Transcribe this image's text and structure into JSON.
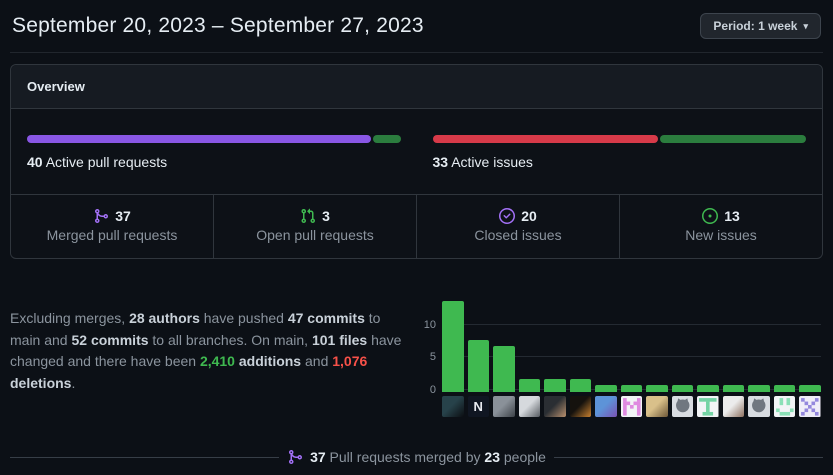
{
  "header": {
    "date_range": "September 20, 2023 – September 27, 2023",
    "period_label": "Period: 1 week",
    "caret": "▾"
  },
  "overview": {
    "title": "Overview",
    "pull_requests_meter": {
      "count": "40",
      "label": "Active pull requests",
      "segments": [
        {
          "name": "merged",
          "pct": 92.5,
          "color": "#8957e5"
        },
        {
          "name": "open",
          "pct": 7.5,
          "color": "#2b7d3e"
        }
      ]
    },
    "issues_meter": {
      "count": "33",
      "label": "Active issues",
      "segments": [
        {
          "name": "closed",
          "pct": 60.6,
          "color": "#d73a49"
        },
        {
          "name": "new",
          "pct": 39.4,
          "color": "#2b7d3e"
        }
      ]
    },
    "stats": [
      {
        "icon": "git-merge-icon",
        "value": "37",
        "label": "Merged pull requests",
        "icon_color": "#a371f7"
      },
      {
        "icon": "git-pull-request-icon",
        "value": "3",
        "label": "Open pull requests",
        "icon_color": "#3fb950"
      },
      {
        "icon": "issue-closed-icon",
        "value": "20",
        "label": "Closed issues",
        "icon_color": "#a371f7"
      },
      {
        "icon": "issue-opened-icon",
        "value": "13",
        "label": "New issues",
        "icon_color": "#3fb950"
      }
    ]
  },
  "summary": {
    "segments": [
      {
        "text": "Excluding merges, ",
        "style": "muted"
      },
      {
        "text": "28 authors",
        "style": "strong"
      },
      {
        "text": " have pushed ",
        "style": "muted"
      },
      {
        "text": "47 commits",
        "style": "strong"
      },
      {
        "text": " to main and ",
        "style": "muted"
      },
      {
        "text": "52 commits",
        "style": "strong"
      },
      {
        "text": " to all branches. On main, ",
        "style": "muted"
      },
      {
        "text": "101 files",
        "style": "strong"
      },
      {
        "text": " have changed and there have been ",
        "style": "muted"
      },
      {
        "text": "2,410",
        "style": "additions"
      },
      {
        "text": " ",
        "style": "muted"
      },
      {
        "text": "additions",
        "style": "strong"
      },
      {
        "text": " and ",
        "style": "muted"
      },
      {
        "text": "1,076",
        "style": "deletions"
      },
      {
        "text": " ",
        "style": "muted"
      },
      {
        "text": "deletions",
        "style": "strong"
      },
      {
        "text": ".",
        "style": "muted"
      }
    ]
  },
  "chart_data": {
    "type": "bar",
    "title": "",
    "xlabel": "",
    "ylabel": "",
    "categories": [
      "author-1",
      "author-2",
      "author-3",
      "author-4",
      "author-5",
      "author-6",
      "author-7",
      "author-8",
      "author-9",
      "author-10",
      "author-11",
      "author-12",
      "author-13",
      "author-14",
      "author-15"
    ],
    "values": [
      14,
      8,
      7,
      2,
      2,
      2,
      1,
      1,
      1,
      1,
      1,
      1,
      1,
      1,
      1
    ],
    "yticks": [
      0,
      5,
      10
    ],
    "ylim": [
      0,
      15
    ],
    "bar_color": "#3fb950",
    "grid": true,
    "legend": "none"
  },
  "avatars": [
    {
      "kind": "photo",
      "c1": "#27424a",
      "c2": "#0b0e12"
    },
    {
      "kind": "letter",
      "bg": "#101622",
      "fg": "#e8eaf0",
      "label": "N"
    },
    {
      "kind": "photo",
      "c1": "#8a9199",
      "c2": "#3c4147"
    },
    {
      "kind": "photo",
      "c1": "#d6d9dd",
      "c2": "#565b61"
    },
    {
      "kind": "photo",
      "c1": "#2a2e33",
      "c2": "#b9906e"
    },
    {
      "kind": "photo",
      "c1": "#15120e",
      "c2": "#c8802f"
    },
    {
      "kind": "photo",
      "c1": "#5d93d8",
      "c2": "#7a52b3"
    },
    {
      "kind": "identicon",
      "bg": "#f2f4f6",
      "fg": "#df8ae0",
      "grid": [
        "10001",
        "11011",
        "10101",
        "10001",
        "10001"
      ]
    },
    {
      "kind": "photo",
      "c1": "#d9c08a",
      "c2": "#6e5838"
    },
    {
      "kind": "octocat",
      "bg": "#d9dde2",
      "fg": "#707780"
    },
    {
      "kind": "identicon",
      "bg": "#f2f4f6",
      "fg": "#74d3a4",
      "grid": [
        "11111",
        "00100",
        "00100",
        "00100",
        "01110"
      ]
    },
    {
      "kind": "photo",
      "c1": "#ececec",
      "c2": "#8d7060"
    },
    {
      "kind": "octocat",
      "bg": "#d9dde2",
      "fg": "#707780"
    },
    {
      "kind": "identicon",
      "bg": "#f2f4f6",
      "fg": "#8ae0b6",
      "grid": [
        "01010",
        "01010",
        "00000",
        "10001",
        "01110"
      ]
    },
    {
      "kind": "identicon",
      "bg": "#efedf8",
      "fg": "#9488dd",
      "grid": [
        "10001",
        "01010",
        "00100",
        "01010",
        "10001"
      ]
    }
  ],
  "footer": {
    "icon": "git-merge-icon",
    "icon_color": "#a371f7",
    "segments": [
      {
        "text": "37",
        "style": "strong"
      },
      {
        "text": " Pull requests merged by ",
        "style": "muted"
      },
      {
        "text": "23",
        "style": "strong"
      },
      {
        "text": " people",
        "style": "muted"
      }
    ]
  },
  "colors": {
    "page_bg": "#0c1016",
    "panel_bg": "#0d1117",
    "panel_header_bg": "#161b22",
    "border": "#30363d",
    "text": "#e6edf3",
    "muted": "#8b949e",
    "green": "#3fb950",
    "red": "#f85149",
    "purple": "#a371f7",
    "merged_bar": "#8957e5"
  }
}
